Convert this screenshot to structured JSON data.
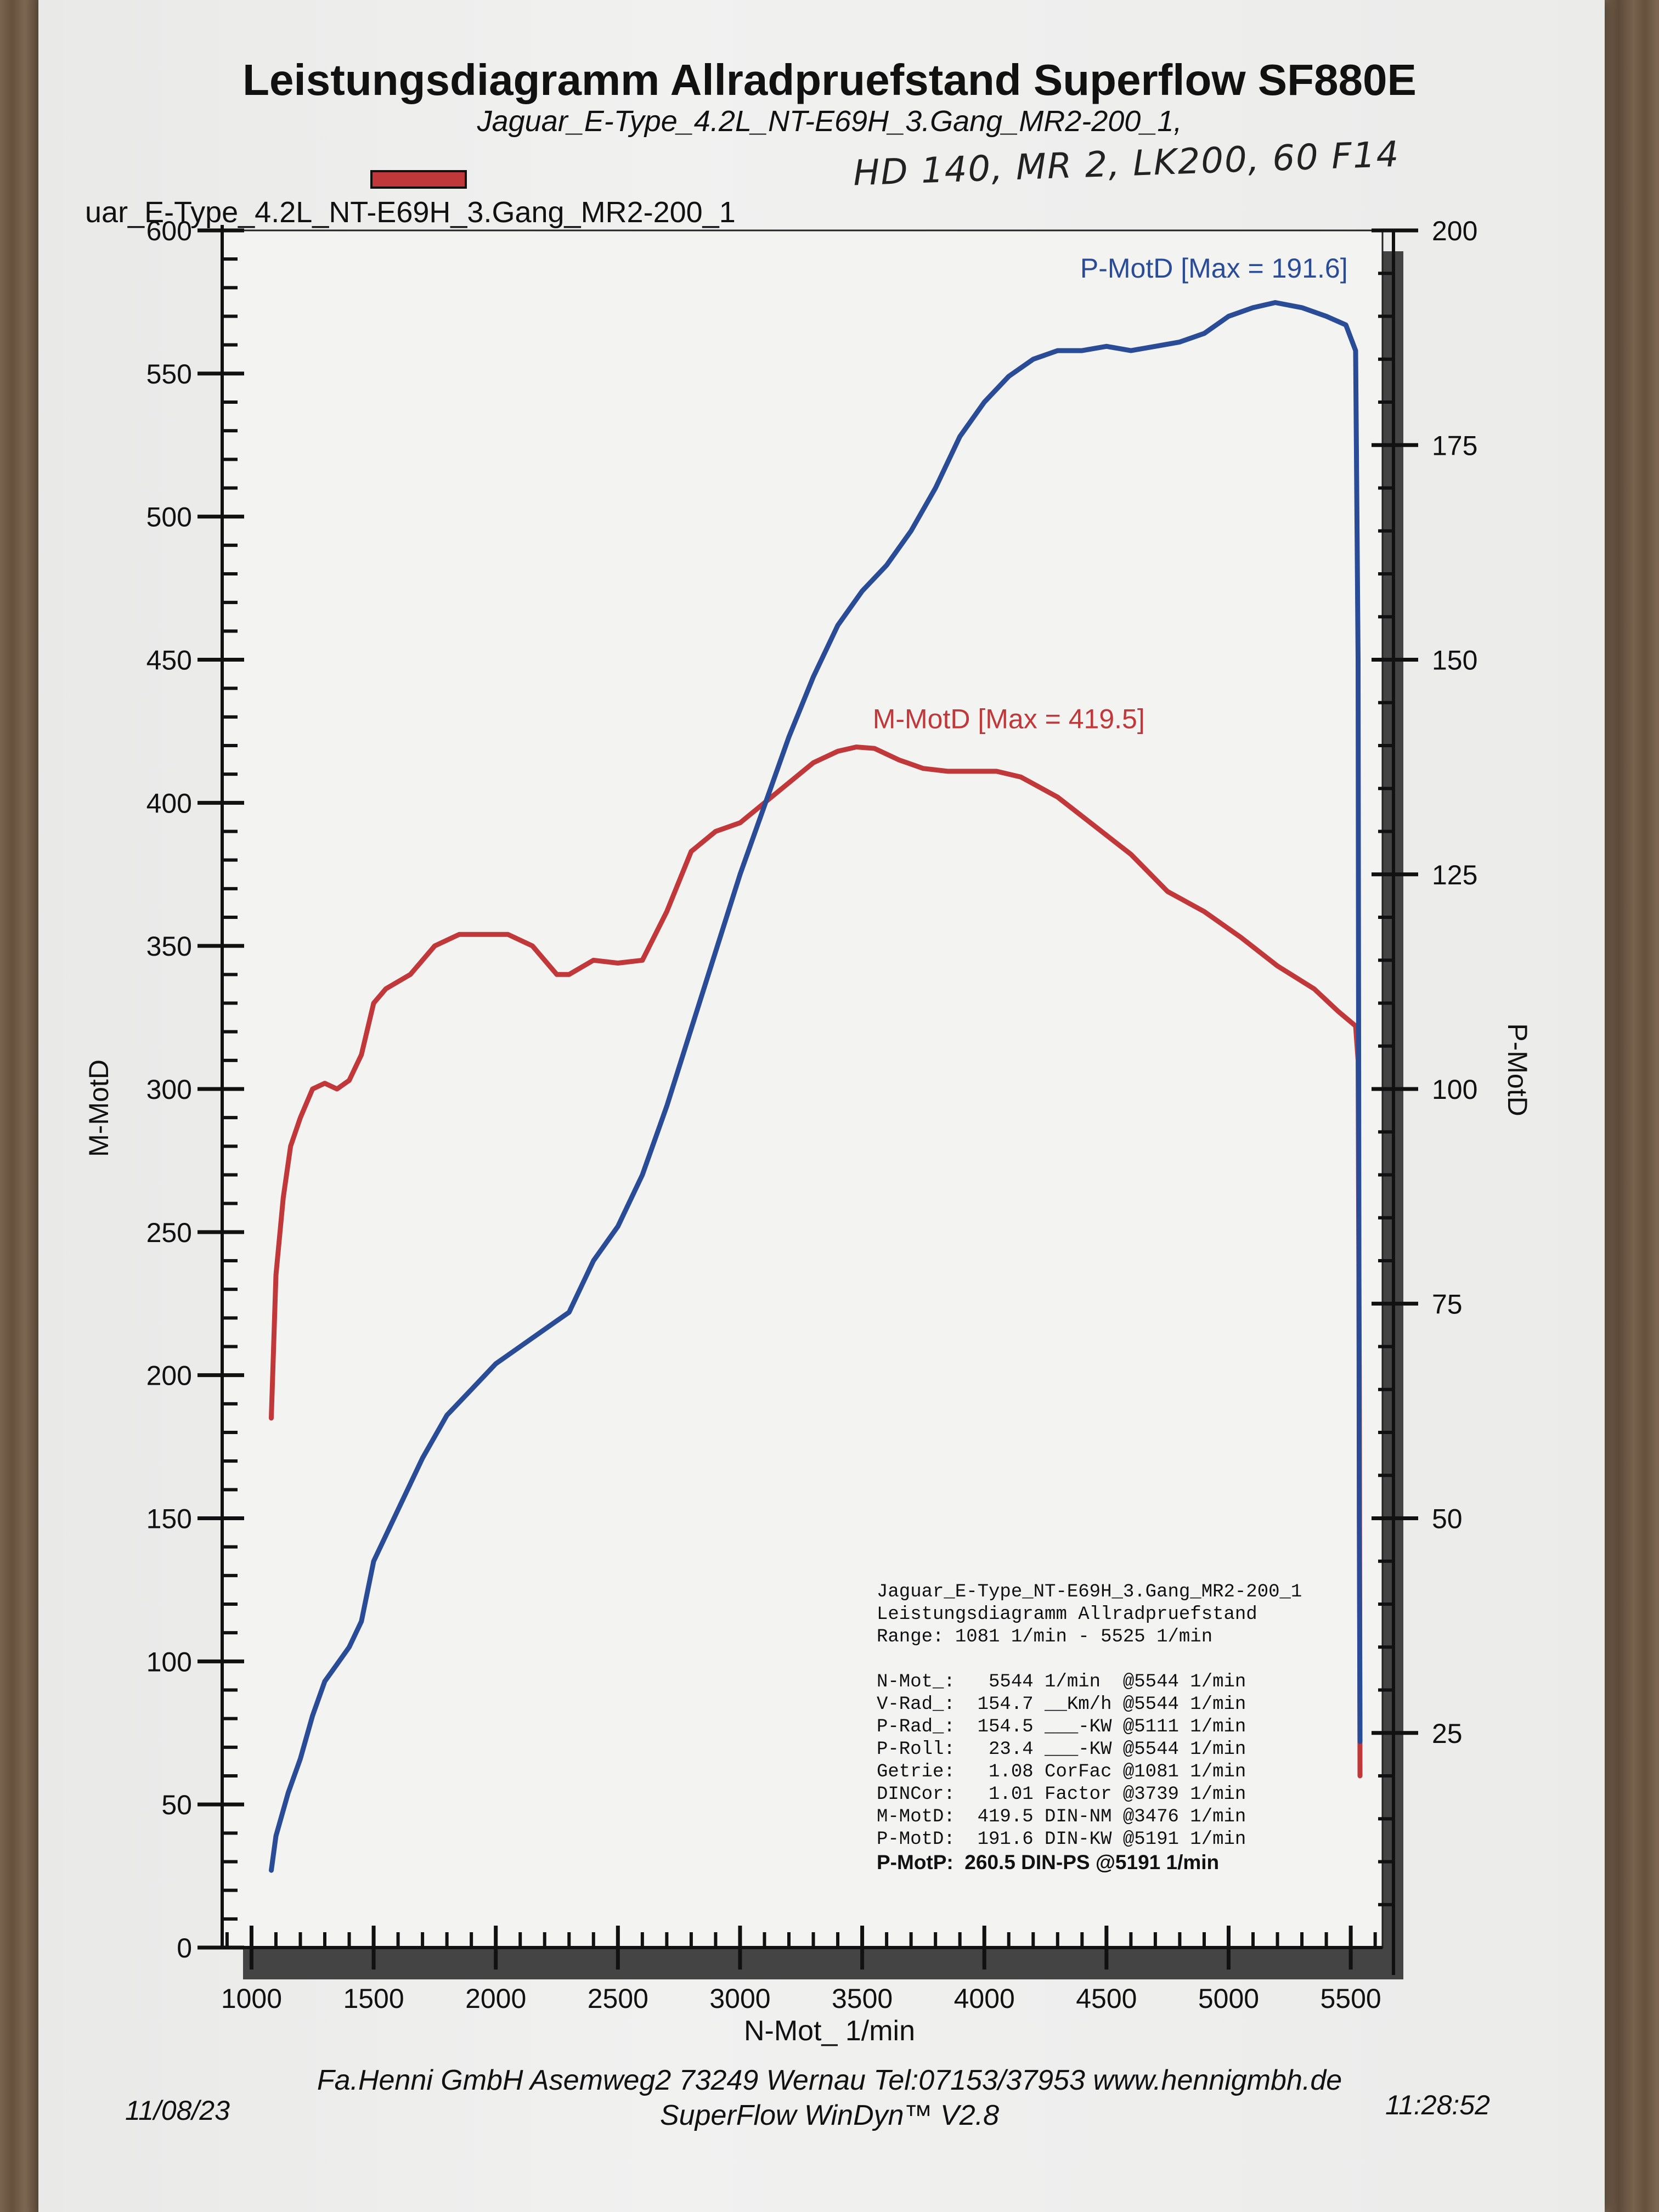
{
  "header": {
    "title": "Leistungsdiagramm Allradpruefstand Superflow SF880E",
    "subtitle": "Jaguar_E-Type_4.2L_NT-E69H_3.Gang_MR2-200_1,",
    "handwritten_note": "HD 140, MR 2, LK200, 60 F14",
    "legend_label": "uar_E-Type_4.2L_NT-E69H_3.Gang_MR2-200_1"
  },
  "info_box": {
    "lines": [
      "Jaguar_E-Type_NT-E69H_3.Gang_MR2-200_1",
      "Leistungsdiagramm Allradpruefstand",
      "Range: 1081 1/min - 5525 1/min",
      "",
      "N-Mot_:   5544 1/min  @5544 1/min",
      "V-Rad_:  154.7 __Km/h @5544 1/min",
      "P-Rad_:  154.5 ___-KW @5111 1/min",
      "P-Roll:   23.4 ___-KW @5544 1/min",
      "Getrie:   1.08 CorFac @1081 1/min",
      "DINCor:   1.01 Factor @3739 1/min",
      "M-MotD:  419.5 DIN-NM @3476 1/min",
      "P-MotD:  191.6 DIN-KW @5191 1/min"
    ],
    "bold_line": "P-MotP:  260.5 DIN-PS @5191 1/min"
  },
  "footer": {
    "company": "Fa.Henni GmbH   Asemweg2   73249 Wernau   Tel:07153/37953   www.hennigmbh.de",
    "date": "11/08/23",
    "software": "SuperFlow WinDyn™ V2.8",
    "time": "11:28:52"
  },
  "chart_data": {
    "type": "line",
    "xlabel": "N-Mot_ 1/min",
    "ylabel_left": "M-MotD",
    "ylabel_right": "P-MotD",
    "xlim": [
      880,
      5630
    ],
    "ylim_left": [
      0,
      600
    ],
    "ylim_right": [
      0,
      200
    ],
    "x_ticks": [
      1000,
      1500,
      2000,
      2500,
      3000,
      3500,
      4000,
      4500,
      5000,
      5500
    ],
    "y_ticks_left": [
      0,
      50,
      100,
      150,
      200,
      250,
      300,
      350,
      400,
      450,
      500,
      550,
      600
    ],
    "y_ticks_right": [
      25,
      50,
      75,
      100,
      125,
      150,
      175,
      200
    ],
    "grid": false,
    "colors": {
      "torque": "#c0383a",
      "power": "#2a4c96"
    },
    "series": [
      {
        "name": "M-MotD",
        "axis": "left",
        "annotation": "M-MotD [Max = 419.5]",
        "points": [
          [
            1081,
            185
          ],
          [
            1100,
            235
          ],
          [
            1130,
            262
          ],
          [
            1160,
            280
          ],
          [
            1200,
            290
          ],
          [
            1250,
            300
          ],
          [
            1300,
            302
          ],
          [
            1350,
            300
          ],
          [
            1400,
            303
          ],
          [
            1450,
            312
          ],
          [
            1500,
            330
          ],
          [
            1550,
            335
          ],
          [
            1650,
            340
          ],
          [
            1750,
            350
          ],
          [
            1850,
            354
          ],
          [
            1950,
            354
          ],
          [
            2050,
            354
          ],
          [
            2150,
            350
          ],
          [
            2250,
            340
          ],
          [
            2300,
            340
          ],
          [
            2400,
            345
          ],
          [
            2500,
            344
          ],
          [
            2600,
            345
          ],
          [
            2700,
            362
          ],
          [
            2800,
            383
          ],
          [
            2900,
            390
          ],
          [
            3000,
            393
          ],
          [
            3100,
            400
          ],
          [
            3200,
            407
          ],
          [
            3300,
            414
          ],
          [
            3400,
            418
          ],
          [
            3476,
            419.5
          ],
          [
            3550,
            419
          ],
          [
            3650,
            415
          ],
          [
            3750,
            412
          ],
          [
            3850,
            411
          ],
          [
            3950,
            411
          ],
          [
            4050,
            411
          ],
          [
            4150,
            409
          ],
          [
            4300,
            402
          ],
          [
            4450,
            392
          ],
          [
            4600,
            382
          ],
          [
            4750,
            369
          ],
          [
            4900,
            362
          ],
          [
            5050,
            353
          ],
          [
            5200,
            343
          ],
          [
            5350,
            335
          ],
          [
            5450,
            327
          ],
          [
            5520,
            322
          ],
          [
            5530,
            310
          ],
          [
            5535,
            200
          ],
          [
            5538,
            60
          ]
        ]
      },
      {
        "name": "P-MotD",
        "axis": "right",
        "annotation": "P-MotD [Max = 191.6]",
        "points": [
          [
            1081,
            9
          ],
          [
            1100,
            13
          ],
          [
            1150,
            18
          ],
          [
            1200,
            22
          ],
          [
            1250,
            27
          ],
          [
            1300,
            31
          ],
          [
            1350,
            33
          ],
          [
            1400,
            35
          ],
          [
            1450,
            38
          ],
          [
            1500,
            45
          ],
          [
            1600,
            51
          ],
          [
            1700,
            57
          ],
          [
            1800,
            62
          ],
          [
            1900,
            65
          ],
          [
            2000,
            68
          ],
          [
            2100,
            70
          ],
          [
            2200,
            72
          ],
          [
            2300,
            74
          ],
          [
            2400,
            80
          ],
          [
            2500,
            84
          ],
          [
            2600,
            90
          ],
          [
            2700,
            98
          ],
          [
            2800,
            107
          ],
          [
            2900,
            116
          ],
          [
            3000,
            125
          ],
          [
            3100,
            133
          ],
          [
            3200,
            141
          ],
          [
            3300,
            148
          ],
          [
            3400,
            154
          ],
          [
            3500,
            158
          ],
          [
            3600,
            161
          ],
          [
            3700,
            165
          ],
          [
            3800,
            170
          ],
          [
            3900,
            176
          ],
          [
            4000,
            180
          ],
          [
            4100,
            183
          ],
          [
            4200,
            185
          ],
          [
            4300,
            186
          ],
          [
            4400,
            186
          ],
          [
            4500,
            186.5
          ],
          [
            4600,
            186
          ],
          [
            4700,
            186.5
          ],
          [
            4800,
            187
          ],
          [
            4900,
            188
          ],
          [
            5000,
            190
          ],
          [
            5100,
            191
          ],
          [
            5191,
            191.6
          ],
          [
            5300,
            191
          ],
          [
            5400,
            190
          ],
          [
            5480,
            189
          ],
          [
            5520,
            186
          ],
          [
            5530,
            150
          ],
          [
            5535,
            50
          ],
          [
            5538,
            24
          ]
        ]
      }
    ]
  }
}
